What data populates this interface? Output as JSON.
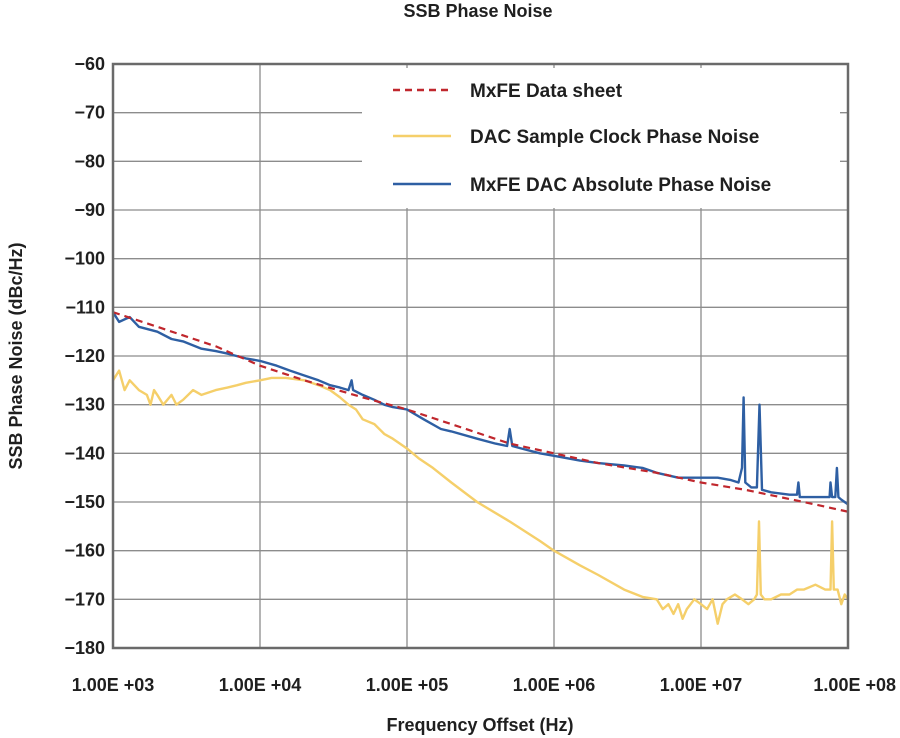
{
  "chart_data": {
    "type": "line",
    "title": "SSB Phase Noise",
    "xlabel": "Frequency Offset (Hz)",
    "ylabel": "SSB Phase Noise (dBc/Hz)",
    "x_scale": "log",
    "xlim": [
      1000,
      100000000
    ],
    "ylim": [
      -180,
      -60
    ],
    "grid": true,
    "legend_position": "top-right",
    "x_ticks": [
      {
        "value": 1000,
        "label": "1.00E +03"
      },
      {
        "value": 10000,
        "label": "1.00E +04"
      },
      {
        "value": 100000,
        "label": "1.00E +05"
      },
      {
        "value": 1000000,
        "label": "1.00E +06"
      },
      {
        "value": 10000000,
        "label": "1.00E +07"
      },
      {
        "value": 100000000,
        "label": "1.00E +08"
      }
    ],
    "y_ticks": [
      {
        "value": -60,
        "label": "−60"
      },
      {
        "value": -70,
        "label": "−70"
      },
      {
        "value": -80,
        "label": "−80"
      },
      {
        "value": -90,
        "label": "−90"
      },
      {
        "value": -100,
        "label": "−100"
      },
      {
        "value": -110,
        "label": "−110"
      },
      {
        "value": -120,
        "label": "−120"
      },
      {
        "value": -130,
        "label": "−130"
      },
      {
        "value": -140,
        "label": "−140"
      },
      {
        "value": -150,
        "label": "−150"
      },
      {
        "value": -160,
        "label": "−160"
      },
      {
        "value": -170,
        "label": "−170"
      },
      {
        "value": -180,
        "label": "−180"
      }
    ],
    "series": [
      {
        "name": "MxFE Data sheet",
        "color": "#c0272d",
        "style": "dashed",
        "points": [
          [
            1000,
            -111
          ],
          [
            2000,
            -114
          ],
          [
            5000,
            -118
          ],
          [
            10000,
            -122
          ],
          [
            20000,
            -125
          ],
          [
            50000,
            -128.5
          ],
          [
            100000,
            -131
          ],
          [
            200000,
            -134
          ],
          [
            500000,
            -138
          ],
          [
            1000000,
            -140
          ],
          [
            2000000,
            -142
          ],
          [
            5000000,
            -144
          ],
          [
            10000000,
            -146
          ],
          [
            20000000,
            -147.5
          ],
          [
            50000000,
            -150
          ],
          [
            100000000,
            -152
          ]
        ]
      },
      {
        "name": "DAC Sample Clock Phase Noise",
        "color": "#f5cf6a",
        "style": "solid",
        "points": [
          [
            1000,
            -125
          ],
          [
            1100,
            -123
          ],
          [
            1200,
            -127
          ],
          [
            1300,
            -125
          ],
          [
            1500,
            -127
          ],
          [
            1700,
            -128
          ],
          [
            1800,
            -130
          ],
          [
            1900,
            -127
          ],
          [
            2000,
            -128
          ],
          [
            2200,
            -130
          ],
          [
            2500,
            -128
          ],
          [
            2700,
            -130
          ],
          [
            3000,
            -129
          ],
          [
            3500,
            -127
          ],
          [
            4000,
            -128
          ],
          [
            5000,
            -127
          ],
          [
            6000,
            -126.5
          ],
          [
            7000,
            -126
          ],
          [
            8000,
            -125.5
          ],
          [
            10000,
            -125
          ],
          [
            12000,
            -124.5
          ],
          [
            15000,
            -124.5
          ],
          [
            20000,
            -125
          ],
          [
            25000,
            -126
          ],
          [
            30000,
            -127
          ],
          [
            35000,
            -128.5
          ],
          [
            40000,
            -130
          ],
          [
            45000,
            -131
          ],
          [
            50000,
            -133
          ],
          [
            60000,
            -134
          ],
          [
            70000,
            -136
          ],
          [
            80000,
            -137
          ],
          [
            100000,
            -139
          ],
          [
            120000,
            -141
          ],
          [
            150000,
            -143
          ],
          [
            200000,
            -146
          ],
          [
            300000,
            -150
          ],
          [
            500000,
            -154
          ],
          [
            800000,
            -158
          ],
          [
            1000000,
            -160
          ],
          [
            1500000,
            -163
          ],
          [
            2000000,
            -165
          ],
          [
            3000000,
            -168
          ],
          [
            4000000,
            -169.5
          ],
          [
            5000000,
            -170
          ],
          [
            5500000,
            -172
          ],
          [
            6000000,
            -171
          ],
          [
            6500000,
            -173
          ],
          [
            7000000,
            -171
          ],
          [
            7500000,
            -174
          ],
          [
            8000000,
            -172
          ],
          [
            9000000,
            -170
          ],
          [
            10000000,
            -171
          ],
          [
            11000000,
            -172
          ],
          [
            12000000,
            -170
          ],
          [
            13000000,
            -175
          ],
          [
            14000000,
            -171
          ],
          [
            15000000,
            -170
          ],
          [
            17000000,
            -169
          ],
          [
            19000000,
            -170
          ],
          [
            21000000,
            -171
          ],
          [
            23000000,
            -170
          ],
          [
            24000000,
            -169
          ],
          [
            24800000,
            -154
          ],
          [
            25500000,
            -169
          ],
          [
            27000000,
            -170
          ],
          [
            30000000,
            -170
          ],
          [
            35000000,
            -169
          ],
          [
            40000000,
            -169
          ],
          [
            45000000,
            -168
          ],
          [
            50000000,
            -168
          ],
          [
            60000000,
            -167
          ],
          [
            70000000,
            -168
          ],
          [
            76000000,
            -168
          ],
          [
            78000000,
            -154
          ],
          [
            80000000,
            -168
          ],
          [
            85000000,
            -168
          ],
          [
            90000000,
            -171
          ],
          [
            95000000,
            -169
          ],
          [
            100000000,
            -170
          ]
        ]
      },
      {
        "name": "MxFE DAC Absolute Phase Noise",
        "color": "#2e5fa3",
        "style": "solid",
        "points": [
          [
            1000,
            -111
          ],
          [
            1100,
            -113
          ],
          [
            1300,
            -112
          ],
          [
            1500,
            -114
          ],
          [
            2000,
            -115
          ],
          [
            2500,
            -116.5
          ],
          [
            3000,
            -117
          ],
          [
            4000,
            -118.5
          ],
          [
            5000,
            -119
          ],
          [
            6000,
            -119.5
          ],
          [
            8000,
            -120.5
          ],
          [
            10000,
            -121
          ],
          [
            13000,
            -122
          ],
          [
            16000,
            -123
          ],
          [
            20000,
            -124
          ],
          [
            25000,
            -125
          ],
          [
            30000,
            -126
          ],
          [
            35000,
            -126.5
          ],
          [
            40000,
            -127
          ],
          [
            42000,
            -125
          ],
          [
            43000,
            -127
          ],
          [
            50000,
            -128
          ],
          [
            60000,
            -129
          ],
          [
            70000,
            -130
          ],
          [
            80000,
            -130.5
          ],
          [
            100000,
            -131
          ],
          [
            130000,
            -133
          ],
          [
            170000,
            -135
          ],
          [
            200000,
            -135.5
          ],
          [
            300000,
            -137
          ],
          [
            400000,
            -138
          ],
          [
            480000,
            -138.5
          ],
          [
            500000,
            -135
          ],
          [
            520000,
            -138.5
          ],
          [
            600000,
            -139
          ],
          [
            800000,
            -140
          ],
          [
            1000000,
            -140.5
          ],
          [
            1500000,
            -141.5
          ],
          [
            2000000,
            -142
          ],
          [
            3000000,
            -142.5
          ],
          [
            4000000,
            -143
          ],
          [
            5000000,
            -144
          ],
          [
            7000000,
            -145
          ],
          [
            10000000,
            -145
          ],
          [
            13000000,
            -145
          ],
          [
            16000000,
            -145.5
          ],
          [
            18000000,
            -146
          ],
          [
            19000000,
            -143
          ],
          [
            19500000,
            -128.5
          ],
          [
            20000000,
            -146
          ],
          [
            22000000,
            -147
          ],
          [
            24000000,
            -147
          ],
          [
            25000000,
            -130
          ],
          [
            26000000,
            -147.5
          ],
          [
            30000000,
            -148
          ],
          [
            40000000,
            -148.5
          ],
          [
            45000000,
            -148.5
          ],
          [
            46000000,
            -146
          ],
          [
            47000000,
            -149
          ],
          [
            60000000,
            -149
          ],
          [
            75000000,
            -149
          ],
          [
            76000000,
            -146
          ],
          [
            78000000,
            -149
          ],
          [
            82000000,
            -149
          ],
          [
            84000000,
            -143
          ],
          [
            86000000,
            -149
          ],
          [
            90000000,
            -149.5
          ],
          [
            100000000,
            -150.5
          ]
        ]
      }
    ]
  }
}
